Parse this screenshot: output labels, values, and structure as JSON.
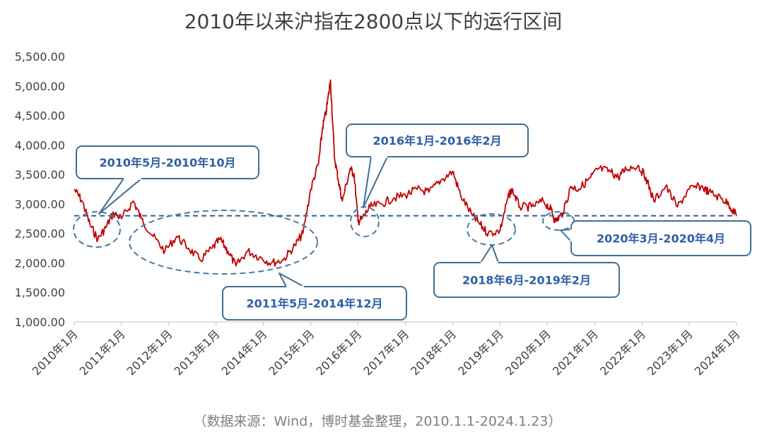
{
  "chart_data": {
    "type": "line",
    "title": "2010年以来沪指在2800点以下的运行区间",
    "source": "（数据来源：Wind，博时基金整理，2010.1.1-2024.1.23）",
    "xlabel": "",
    "ylabel": "",
    "ylim": [
      1000,
      5500
    ],
    "yticks": [
      "1,000.00",
      "1,500.00",
      "2,000.00",
      "2,500.00",
      "3,000.00",
      "3,500.00",
      "4,000.00",
      "4,500.00",
      "5,000.00",
      "5,500.00"
    ],
    "xticks": [
      "2010年1月",
      "2011年1月",
      "2012年1月",
      "2013年1月",
      "2014年1月",
      "2015年1月",
      "2016年1月",
      "2017年1月",
      "2018年1月",
      "2019年1月",
      "2020年1月",
      "2021年1月",
      "2022年1月",
      "2023年1月",
      "2024年1月"
    ],
    "grid": false,
    "threshold": 2800,
    "series": [
      {
        "color": "#c00000",
        "x": [
          "2010-01",
          "2010-03",
          "2010-05",
          "2010-07",
          "2010-09",
          "2010-11",
          "2011-01",
          "2011-04",
          "2011-06",
          "2011-09",
          "2011-12",
          "2012-03",
          "2012-06",
          "2012-09",
          "2012-12",
          "2013-02",
          "2013-04",
          "2013-06",
          "2013-09",
          "2013-12",
          "2014-03",
          "2014-06",
          "2014-09",
          "2014-11",
          "2015-01",
          "2015-03",
          "2015-04",
          "2015-05",
          "2015-06",
          "2015-07",
          "2015-08",
          "2015-09",
          "2015-11",
          "2015-12",
          "2016-01",
          "2016-02",
          "2016-04",
          "2016-07",
          "2016-10",
          "2017-01",
          "2017-04",
          "2017-07",
          "2017-10",
          "2018-01",
          "2018-03",
          "2018-06",
          "2018-08",
          "2018-10",
          "2019-01",
          "2019-03",
          "2019-04",
          "2019-06",
          "2019-09",
          "2019-12",
          "2020-02",
          "2020-03",
          "2020-05",
          "2020-07",
          "2020-09",
          "2020-12",
          "2021-02",
          "2021-05",
          "2021-07",
          "2021-09",
          "2021-12",
          "2022-02",
          "2022-04",
          "2022-07",
          "2022-10",
          "2023-01",
          "2023-04",
          "2023-06",
          "2023-09",
          "2023-11",
          "2024-01"
        ],
        "y": [
          3250,
          3050,
          2650,
          2400,
          2600,
          2850,
          2750,
          3050,
          2750,
          2450,
          2200,
          2450,
          2250,
          2050,
          2250,
          2400,
          2200,
          1950,
          2200,
          2100,
          2000,
          2050,
          2300,
          2500,
          3250,
          3700,
          4300,
          4600,
          5100,
          3800,
          3400,
          3050,
          3600,
          3500,
          2700,
          2750,
          2950,
          3000,
          3100,
          3150,
          3250,
          3200,
          3400,
          3550,
          3150,
          2800,
          2650,
          2500,
          2550,
          3100,
          3250,
          2950,
          2950,
          3050,
          2900,
          2700,
          2850,
          3300,
          3250,
          3450,
          3600,
          3550,
          3450,
          3600,
          3650,
          3450,
          3050,
          3300,
          2950,
          3250,
          3300,
          3200,
          3100,
          3000,
          2800
        ]
      }
    ],
    "annotations": [
      {
        "label": "2010年5月-2010年10月"
      },
      {
        "label": "2011年5月-2014年12月"
      },
      {
        "label": "2016年1月-2016年2月"
      },
      {
        "label": "2018年6月-2019年2月"
      },
      {
        "label": "2020年3月-2020年4月"
      }
    ]
  }
}
